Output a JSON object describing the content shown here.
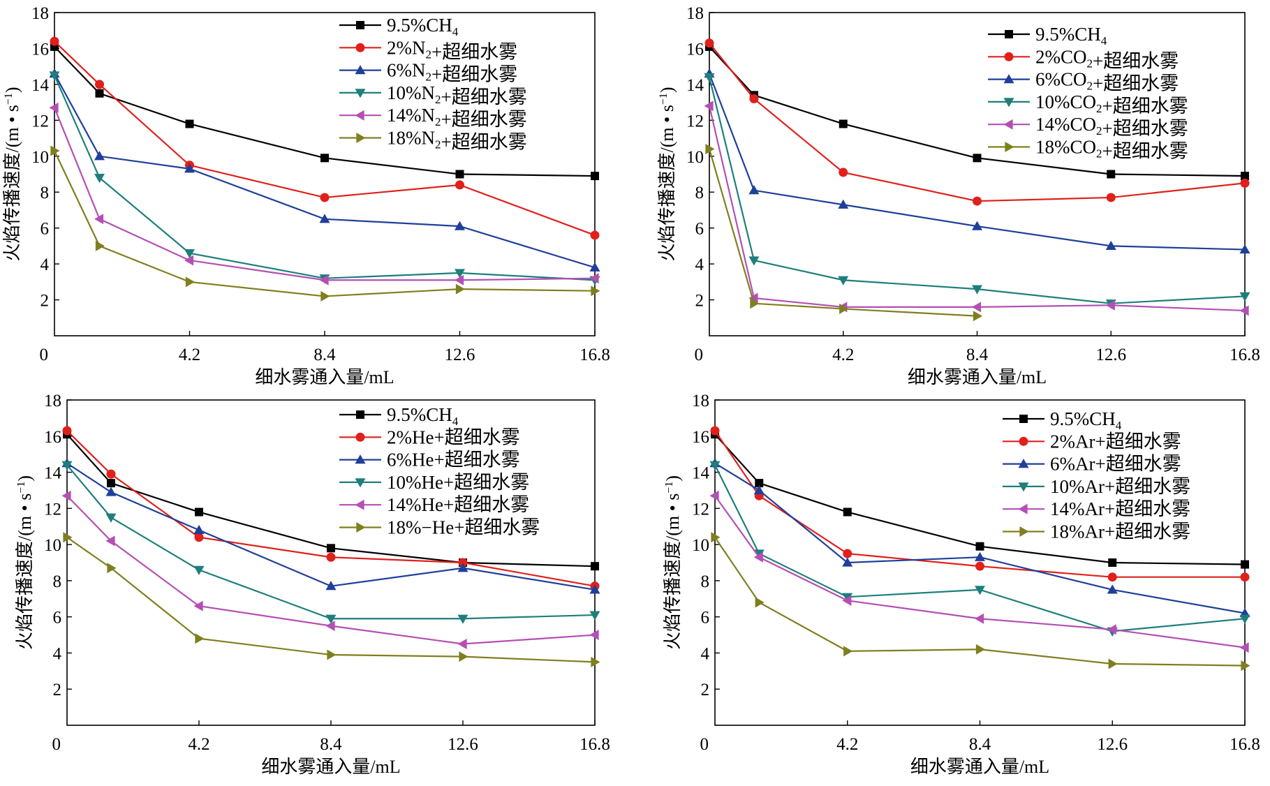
{
  "chart_data": [
    {
      "type": "line",
      "xlabel": "细水雾通入量/mL",
      "ylabel": {
        "main": "火焰传播速度/(m • s",
        "sup": "−1",
        "end": ")"
      },
      "xlim": [
        0,
        16.8
      ],
      "ylim": [
        0,
        18
      ],
      "x_ticks": [
        "4.2",
        "8.4",
        "12.6",
        "16.8"
      ],
      "y_ticks": [
        "2",
        "4",
        "6",
        "8",
        "10",
        "12",
        "14",
        "16",
        "18"
      ],
      "origin_label": "0",
      "legend_position": "top-right",
      "x": [
        0,
        1.4,
        4.2,
        8.4,
        12.6,
        16.8
      ],
      "series": [
        {
          "name": "9.5%CH4",
          "label_parts": [
            {
              "t": "9.5%CH"
            },
            {
              "sub": "4"
            }
          ],
          "color": "#000000",
          "marker": "square",
          "values": [
            16.1,
            13.5,
            11.8,
            9.9,
            9.0,
            8.9
          ]
        },
        {
          "name": "2%N2+超细水雾",
          "label_parts": [
            {
              "t": "2%N"
            },
            {
              "sub": "2"
            },
            {
              "t": "+超细水雾"
            }
          ],
          "color": "#e0201b",
          "marker": "circle",
          "values": [
            16.4,
            14.0,
            9.5,
            7.7,
            8.4,
            5.6
          ]
        },
        {
          "name": "6%N2+超细水雾",
          "label_parts": [
            {
              "t": "6%N"
            },
            {
              "sub": "2"
            },
            {
              "t": "+超细水雾"
            }
          ],
          "color": "#1f3f99",
          "marker": "triangle-up",
          "values": [
            14.6,
            10.0,
            9.3,
            6.5,
            6.1,
            3.8
          ]
        },
        {
          "name": "10%N2+超细水雾",
          "label_parts": [
            {
              "t": "10%N"
            },
            {
              "sub": "2"
            },
            {
              "t": "+超细水雾"
            }
          ],
          "color": "#1e7f7a",
          "marker": "triangle-down",
          "values": [
            14.5,
            8.8,
            4.6,
            3.2,
            3.5,
            3.1
          ]
        },
        {
          "name": "14%N2+超细水雾",
          "label_parts": [
            {
              "t": "14%N"
            },
            {
              "sub": "2"
            },
            {
              "t": "+超细水雾"
            }
          ],
          "color": "#b44fb4",
          "marker": "triangle-left",
          "values": [
            12.7,
            6.5,
            4.2,
            3.1,
            3.1,
            3.2
          ]
        },
        {
          "name": "18%N2+超细水雾",
          "label_parts": [
            {
              "t": "18%N"
            },
            {
              "sub": "2"
            },
            {
              "t": "+超细水雾"
            }
          ],
          "color": "#7f7f1f",
          "marker": "triangle-right",
          "values": [
            10.3,
            5.0,
            3.0,
            2.2,
            2.6,
            2.5
          ]
        }
      ]
    },
    {
      "type": "line",
      "xlabel": "细水雾通入量/mL",
      "ylabel": {
        "main": "火焰传播速度/(m • s",
        "sup": "−1",
        "end": ")"
      },
      "xlim": [
        0,
        16.8
      ],
      "ylim": [
        0,
        18
      ],
      "x_ticks": [
        "4.2",
        "8.4",
        "12.6",
        "16.8"
      ],
      "y_ticks": [
        "2",
        "4",
        "6",
        "8",
        "10",
        "12",
        "14",
        "16",
        "18"
      ],
      "origin_label": "0",
      "legend_position": "top-right",
      "x": [
        0,
        1.4,
        4.2,
        8.4,
        12.6,
        16.8
      ],
      "series": [
        {
          "name": "9.5%CH4",
          "label_parts": [
            {
              "t": "9.5%CH"
            },
            {
              "sub": "4"
            }
          ],
          "color": "#000000",
          "marker": "square",
          "values": [
            16.1,
            13.4,
            11.8,
            9.9,
            9.0,
            8.9
          ]
        },
        {
          "name": "2%CO2+超细水雾",
          "label_parts": [
            {
              "t": "2%CO"
            },
            {
              "sub": "2"
            },
            {
              "t": "+超细水雾"
            }
          ],
          "color": "#e0201b",
          "marker": "circle",
          "values": [
            16.3,
            13.2,
            9.1,
            7.5,
            7.7,
            8.5
          ]
        },
        {
          "name": "6%CO2+超细水雾",
          "label_parts": [
            {
              "t": "6%CO"
            },
            {
              "sub": "2"
            },
            {
              "t": "+超细水雾"
            }
          ],
          "color": "#1f3f99",
          "marker": "triangle-up",
          "values": [
            14.6,
            8.1,
            7.3,
            6.1,
            5.0,
            4.8
          ]
        },
        {
          "name": "10%CO2+超细水雾",
          "label_parts": [
            {
              "t": "10%CO"
            },
            {
              "sub": "2"
            },
            {
              "t": "+超细水雾"
            }
          ],
          "color": "#1e7f7a",
          "marker": "triangle-down",
          "values": [
            14.4,
            4.2,
            3.1,
            2.6,
            1.8,
            2.2
          ]
        },
        {
          "name": "14%CO2+超细水雾",
          "label_parts": [
            {
              "t": "14%CO"
            },
            {
              "sub": "2"
            },
            {
              "t": "+超细水雾"
            }
          ],
          "color": "#b44fb4",
          "marker": "triangle-left",
          "values": [
            12.8,
            2.1,
            1.6,
            1.6,
            1.7,
            1.4
          ]
        },
        {
          "name": "18%CO2+超细水雾",
          "label_parts": [
            {
              "t": "18%CO"
            },
            {
              "sub": "2"
            },
            {
              "t": "+超细水雾"
            }
          ],
          "color": "#7f7f1f",
          "marker": "triangle-right",
          "x": [
            0,
            1.4,
            4.2,
            8.4
          ],
          "values": [
            10.4,
            1.8,
            1.5,
            1.1
          ]
        }
      ]
    },
    {
      "type": "line",
      "xlabel": "细水雾通入量/mL",
      "ylabel": {
        "main": "火焰传播速度/(m • s",
        "sup": "−1",
        "end": ")"
      },
      "xlim": [
        0,
        16.8
      ],
      "ylim": [
        0,
        18
      ],
      "x_ticks": [
        "4.2",
        "8.4",
        "12.6",
        "16.8"
      ],
      "y_ticks": [
        "2",
        "4",
        "6",
        "8",
        "10",
        "12",
        "14",
        "16",
        "18"
      ],
      "origin_label": "0",
      "legend_position": "top-right",
      "x": [
        0,
        1.4,
        4.2,
        8.4,
        12.6,
        16.8
      ],
      "series": [
        {
          "name": "9.5%CH4",
          "label_parts": [
            {
              "t": "9.5%CH"
            },
            {
              "sub": "4"
            }
          ],
          "color": "#000000",
          "marker": "square",
          "values": [
            16.1,
            13.4,
            11.8,
            9.8,
            9.0,
            8.8
          ]
        },
        {
          "name": "2%He+超细水雾",
          "label_parts": [
            {
              "t": "2%He+超细水雾"
            }
          ],
          "color": "#e0201b",
          "marker": "circle",
          "values": [
            16.3,
            13.9,
            10.4,
            9.3,
            9.0,
            7.7
          ]
        },
        {
          "name": "6%He+超细水雾",
          "label_parts": [
            {
              "t": "6%He+超细水雾"
            }
          ],
          "color": "#1f3f99",
          "marker": "triangle-up",
          "values": [
            14.5,
            12.9,
            10.8,
            7.7,
            8.7,
            7.5
          ]
        },
        {
          "name": "10%He+超细水雾",
          "label_parts": [
            {
              "t": "10%He+超细水雾"
            }
          ],
          "color": "#1e7f7a",
          "marker": "triangle-down",
          "values": [
            14.4,
            11.5,
            8.6,
            5.9,
            5.9,
            6.1
          ]
        },
        {
          "name": "14%He+超细水雾",
          "label_parts": [
            {
              "t": "14%He+超细水雾"
            }
          ],
          "color": "#b44fb4",
          "marker": "triangle-left",
          "values": [
            12.7,
            10.2,
            6.6,
            5.5,
            4.5,
            5.0
          ]
        },
        {
          "name": "18%−He+超细水雾",
          "label_parts": [
            {
              "t": "18%−He+超细水雾"
            }
          ],
          "color": "#7f7f1f",
          "marker": "triangle-right",
          "values": [
            10.4,
            8.7,
            4.8,
            3.9,
            3.8,
            3.5
          ]
        }
      ]
    },
    {
      "type": "line",
      "xlabel": "细水雾通入量/mL",
      "ylabel": {
        "main": "火焰传播速度/(m • s",
        "sup": "−1",
        "end": ")"
      },
      "xlim": [
        0,
        16.8
      ],
      "ylim": [
        0,
        18
      ],
      "x_ticks": [
        "4.2",
        "8.4",
        "12.6",
        "16.8"
      ],
      "y_ticks": [
        "2",
        "4",
        "6",
        "8",
        "10",
        "12",
        "14",
        "16",
        "18"
      ],
      "origin_label": "0",
      "legend_position": "top-right",
      "x": [
        0,
        1.4,
        4.2,
        8.4,
        12.6,
        16.8
      ],
      "series": [
        {
          "name": "9.5%CH4",
          "label_parts": [
            {
              "t": "9.5%CH"
            },
            {
              "sub": "4"
            }
          ],
          "color": "#000000",
          "marker": "square",
          "values": [
            16.1,
            13.4,
            11.8,
            9.9,
            9.0,
            8.9
          ]
        },
        {
          "name": "2%Ar+超细水雾",
          "label_parts": [
            {
              "t": "2%Ar+超细水雾"
            }
          ],
          "color": "#e0201b",
          "marker": "circle",
          "values": [
            16.3,
            12.7,
            9.5,
            8.8,
            8.2,
            8.2
          ]
        },
        {
          "name": "6%Ar+超细水雾",
          "label_parts": [
            {
              "t": "6%Ar+超细水雾"
            }
          ],
          "color": "#1f3f99",
          "marker": "triangle-up",
          "values": [
            14.5,
            13.0,
            9.0,
            9.3,
            7.5,
            6.2
          ]
        },
        {
          "name": "10%Ar+超细水雾",
          "label_parts": [
            {
              "t": "10%Ar+超细水雾"
            }
          ],
          "color": "#1e7f7a",
          "marker": "triangle-down",
          "values": [
            14.4,
            9.5,
            7.1,
            7.5,
            5.2,
            5.9
          ]
        },
        {
          "name": "14%Ar+超细水雾",
          "label_parts": [
            {
              "t": "14%Ar+超细水雾"
            }
          ],
          "color": "#b44fb4",
          "marker": "triangle-left",
          "values": [
            12.7,
            9.3,
            6.9,
            5.9,
            5.3,
            4.3
          ]
        },
        {
          "name": "18%Ar+超细水雾",
          "label_parts": [
            {
              "t": "18%Ar+超细水雾"
            }
          ],
          "color": "#7f7f1f",
          "marker": "triangle-right",
          "values": [
            10.4,
            6.8,
            4.1,
            4.2,
            3.4,
            3.3
          ]
        }
      ]
    }
  ]
}
